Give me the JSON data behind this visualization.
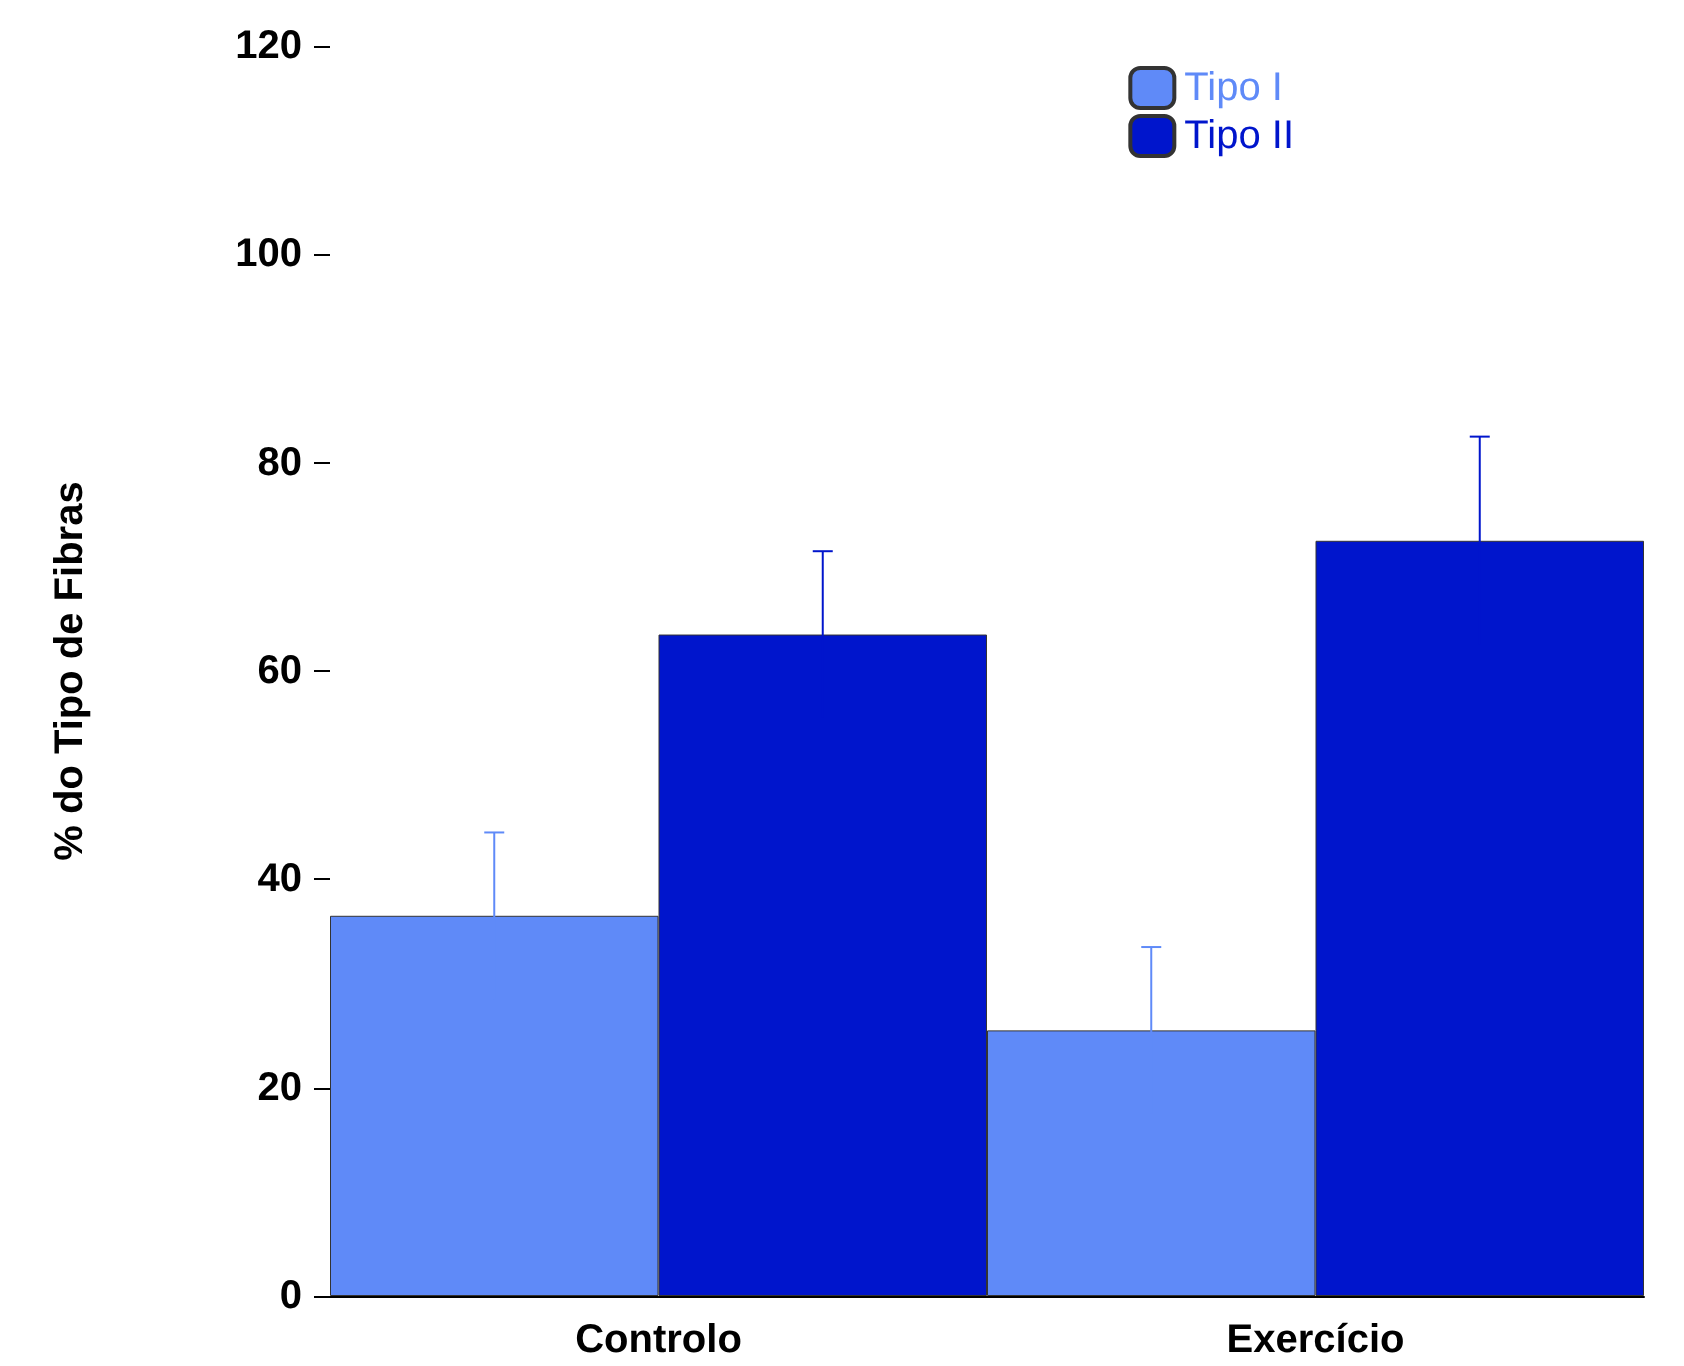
{
  "chart_data": {
    "type": "bar",
    "ylabel": "% do Tipo de Fibras",
    "categories": [
      "Controlo",
      "Exercício"
    ],
    "series": [
      {
        "name": "Tipo I",
        "color": "#5f8af8",
        "values": [
          36.5,
          25.5
        ],
        "errors": [
          8,
          8
        ]
      },
      {
        "name": "Tipo II",
        "color": "#0015cc",
        "values": [
          63.5,
          72.5
        ],
        "errors": [
          8,
          10
        ]
      }
    ],
    "ylim": [
      0,
      120
    ],
    "yticks": [
      0,
      20,
      40,
      60,
      80,
      100,
      120
    ],
    "grid": false,
    "legend": "top right"
  }
}
